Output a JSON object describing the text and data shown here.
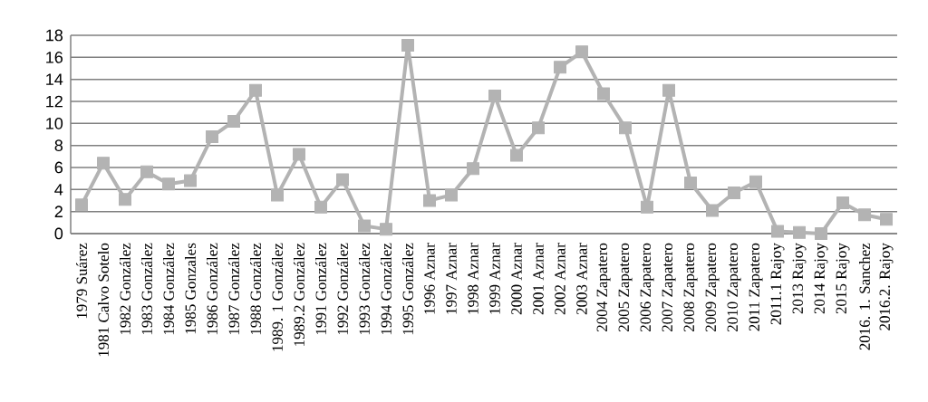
{
  "chart_data": {
    "type": "line",
    "categories": [
      "1979 Suárez",
      "1981 Calvo Sotelo",
      "1982 González",
      "1983 González",
      "1984 González",
      "1985 Gonzales",
      "1986 González",
      "1987 González",
      "1988 González",
      "1989. 1 González",
      "1989.2 González",
      "1991 González",
      "1992 González",
      "1993 González",
      "1994 González",
      "1995 González",
      "1996 Aznar",
      "1997 Aznar",
      "1998 Aznar",
      "1999 Aznar",
      "2000 Aznar",
      "2001 Aznar",
      "2002 Aznar",
      "2003 Aznar",
      "2004 Zapatero",
      "2005 Zapatero",
      "2006 Zapatero",
      "2007 Zapatero",
      "2008 Zapatero",
      "2009 Zapatero",
      "2010 Zapatero",
      "2011 Zapatero",
      "2011.1 Rajoy",
      "2013 Rajoy",
      "2014 Rajoy",
      "2015 Rajoy",
      "2016. 1. Sanchez",
      "2016.2. Rajoy"
    ],
    "values": [
      2.6,
      6.4,
      3.1,
      5.6,
      4.5,
      4.8,
      8.8,
      10.2,
      13.0,
      3.5,
      7.2,
      2.4,
      4.9,
      0.7,
      0.4,
      17.1,
      3.0,
      3.5,
      5.9,
      12.5,
      7.1,
      9.6,
      15.1,
      16.5,
      12.7,
      9.6,
      2.4,
      13.0,
      4.6,
      2.1,
      3.7,
      4.7,
      0.2,
      0.1,
      0.0,
      2.8,
      1.7,
      1.3
    ],
    "color": "#b3b3b3",
    "ylim": [
      0,
      18
    ],
    "yticks": [
      0,
      2,
      4,
      6,
      8,
      10,
      12,
      14,
      16,
      18
    ],
    "grid": "y",
    "marker": "square",
    "line_style": "solid"
  }
}
